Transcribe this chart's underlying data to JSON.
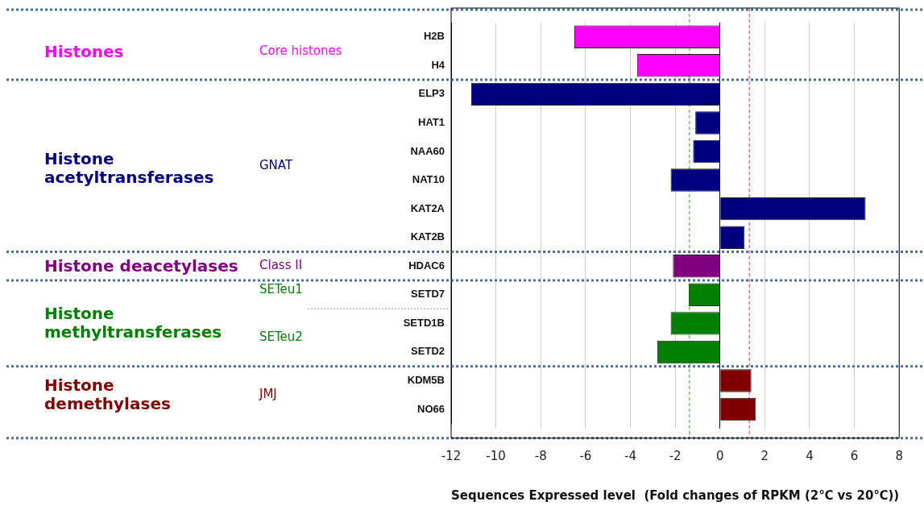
{
  "chart_data": {
    "type": "bar",
    "orientation": "horizontal",
    "xlabel": "Sequences Expressed level  (Fold changes of RPKM (2℃ vs 20℃))",
    "categories": [
      "H2B",
      "H4",
      "ELP3",
      "HAT1",
      "NAA60",
      "NAT10",
      "KAT2A",
      "KAT2B",
      "HDAC6",
      "SETD7",
      "SETD1B",
      "SETD2",
      "KDM5B",
      "NO66"
    ],
    "values": [
      -6.5,
      -3.7,
      -11.1,
      -1.1,
      -1.2,
      -2.2,
      6.5,
      1.1,
      -2.1,
      -1.4,
      -2.2,
      -2.8,
      1.4,
      1.6
    ],
    "colors": [
      "#ff00ff",
      "#ff00ff",
      "#000080",
      "#000080",
      "#000080",
      "#000080",
      "#000080",
      "#000080",
      "#800080",
      "#008000",
      "#008000",
      "#008000",
      "#800000",
      "#800000"
    ],
    "xlim": [
      -12,
      8
    ],
    "xticks": [
      -12,
      -10,
      -8,
      -6,
      -4,
      -2,
      0,
      2,
      4,
      6,
      8
    ],
    "grid": "x",
    "legend": false,
    "ref_lines": [
      {
        "axis": "x",
        "value": -1.36,
        "color": "#339933",
        "line_style": "dashed"
      },
      {
        "axis": "x",
        "value": 1.31,
        "color": "#cc3366",
        "line_style": "dashed"
      }
    ],
    "annotations": [
      "Histones",
      "Core histones",
      "Histone acetyltransferases",
      "GNAT",
      "Histone deacetylases",
      "Class II",
      "Histone methyltransferases",
      "SETeu1",
      "SETeu2",
      "Histone demethylases",
      "JMJ"
    ]
  }
}
